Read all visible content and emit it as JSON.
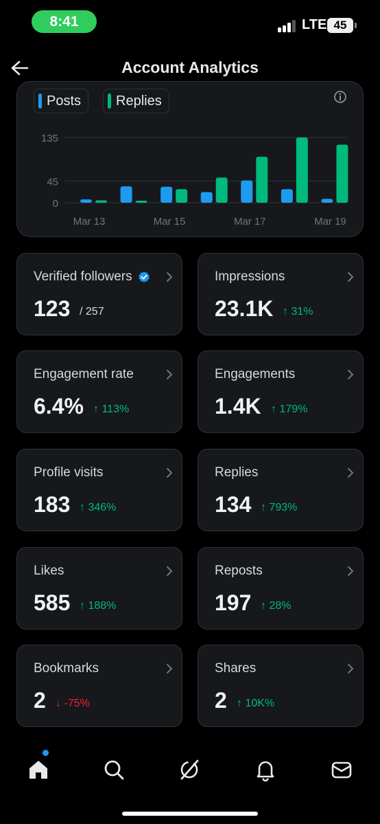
{
  "status_bar": {
    "time": "8:41",
    "network": "LTE",
    "battery": "45"
  },
  "header": {
    "title": "Account Analytics"
  },
  "chart_data": {
    "type": "bar",
    "categories": [
      "Mar 13",
      "Mar 14",
      "Mar 15",
      "Mar 16",
      "Mar 17",
      "Mar 18",
      "Mar 19"
    ],
    "x_tick_labels": [
      "Mar 13",
      "Mar 15",
      "Mar 17",
      "Mar 19"
    ],
    "y_ticks": [
      0,
      45,
      135
    ],
    "ylim": [
      0,
      135
    ],
    "grid": true,
    "legend": "top-left",
    "series": [
      {
        "name": "Posts",
        "color": "#1d9bf0",
        "values": [
          7,
          34,
          33,
          22,
          46,
          28,
          8
        ]
      },
      {
        "name": "Replies",
        "color": "#00ba7c",
        "values": [
          5,
          3,
          28,
          52,
          95,
          135,
          120
        ]
      }
    ]
  },
  "stats": [
    {
      "label": "Verified followers",
      "value": "123",
      "extra": "/ 257",
      "trend": "none",
      "verified": true
    },
    {
      "label": "Impressions",
      "value": "23.1K",
      "extra": "31%",
      "trend": "up"
    },
    {
      "label": "Engagement rate",
      "value": "6.4%",
      "extra": "113%",
      "trend": "up"
    },
    {
      "label": "Engagements",
      "value": "1.4K",
      "extra": "179%",
      "trend": "up"
    },
    {
      "label": "Profile visits",
      "value": "183",
      "extra": "346%",
      "trend": "up"
    },
    {
      "label": "Replies",
      "value": "134",
      "extra": "793%",
      "trend": "up"
    },
    {
      "label": "Likes",
      "value": "585",
      "extra": "188%",
      "trend": "up"
    },
    {
      "label": "Reposts",
      "value": "197",
      "extra": "28%",
      "trend": "up"
    },
    {
      "label": "Bookmarks",
      "value": "2",
      "extra": "-75%",
      "trend": "down"
    },
    {
      "label": "Shares",
      "value": "2",
      "extra": "10K%",
      "trend": "up"
    }
  ],
  "tabs": [
    {
      "icon": "home-icon",
      "has_badge": true
    },
    {
      "icon": "search-icon"
    },
    {
      "icon": "grok-icon"
    },
    {
      "icon": "bell-icon"
    },
    {
      "icon": "mail-icon"
    }
  ],
  "colors": {
    "accent": "#1d9bf0",
    "positive": "#00ba7c",
    "negative": "#f4212e",
    "card": "#16181c"
  }
}
